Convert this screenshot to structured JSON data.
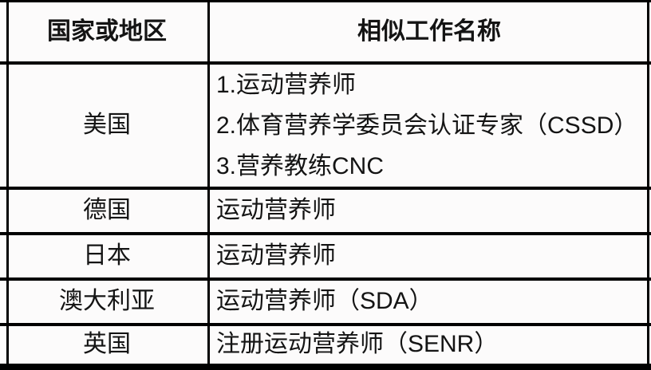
{
  "theme": {
    "border": "#000000",
    "text": "#141414",
    "background": "#fcfbfb"
  },
  "table": {
    "columns": [
      {
        "label": "国家或地区"
      },
      {
        "label": "相似工作名称"
      }
    ],
    "rows": [
      {
        "country": "美国",
        "jobs": [
          "1.运动营养师",
          "2.体育营养学委员会认证专家（CSSD）",
          "3.营养教练CNC"
        ]
      },
      {
        "country": "德国",
        "jobs": [
          "运动营养师"
        ]
      },
      {
        "country": "日本",
        "jobs": [
          "运动营养师"
        ]
      },
      {
        "country": "澳大利亚",
        "jobs": [
          "运动营养师（SDA）"
        ]
      },
      {
        "country": "英国",
        "jobs": [
          "注册运动营养师（SENR）"
        ]
      }
    ]
  }
}
